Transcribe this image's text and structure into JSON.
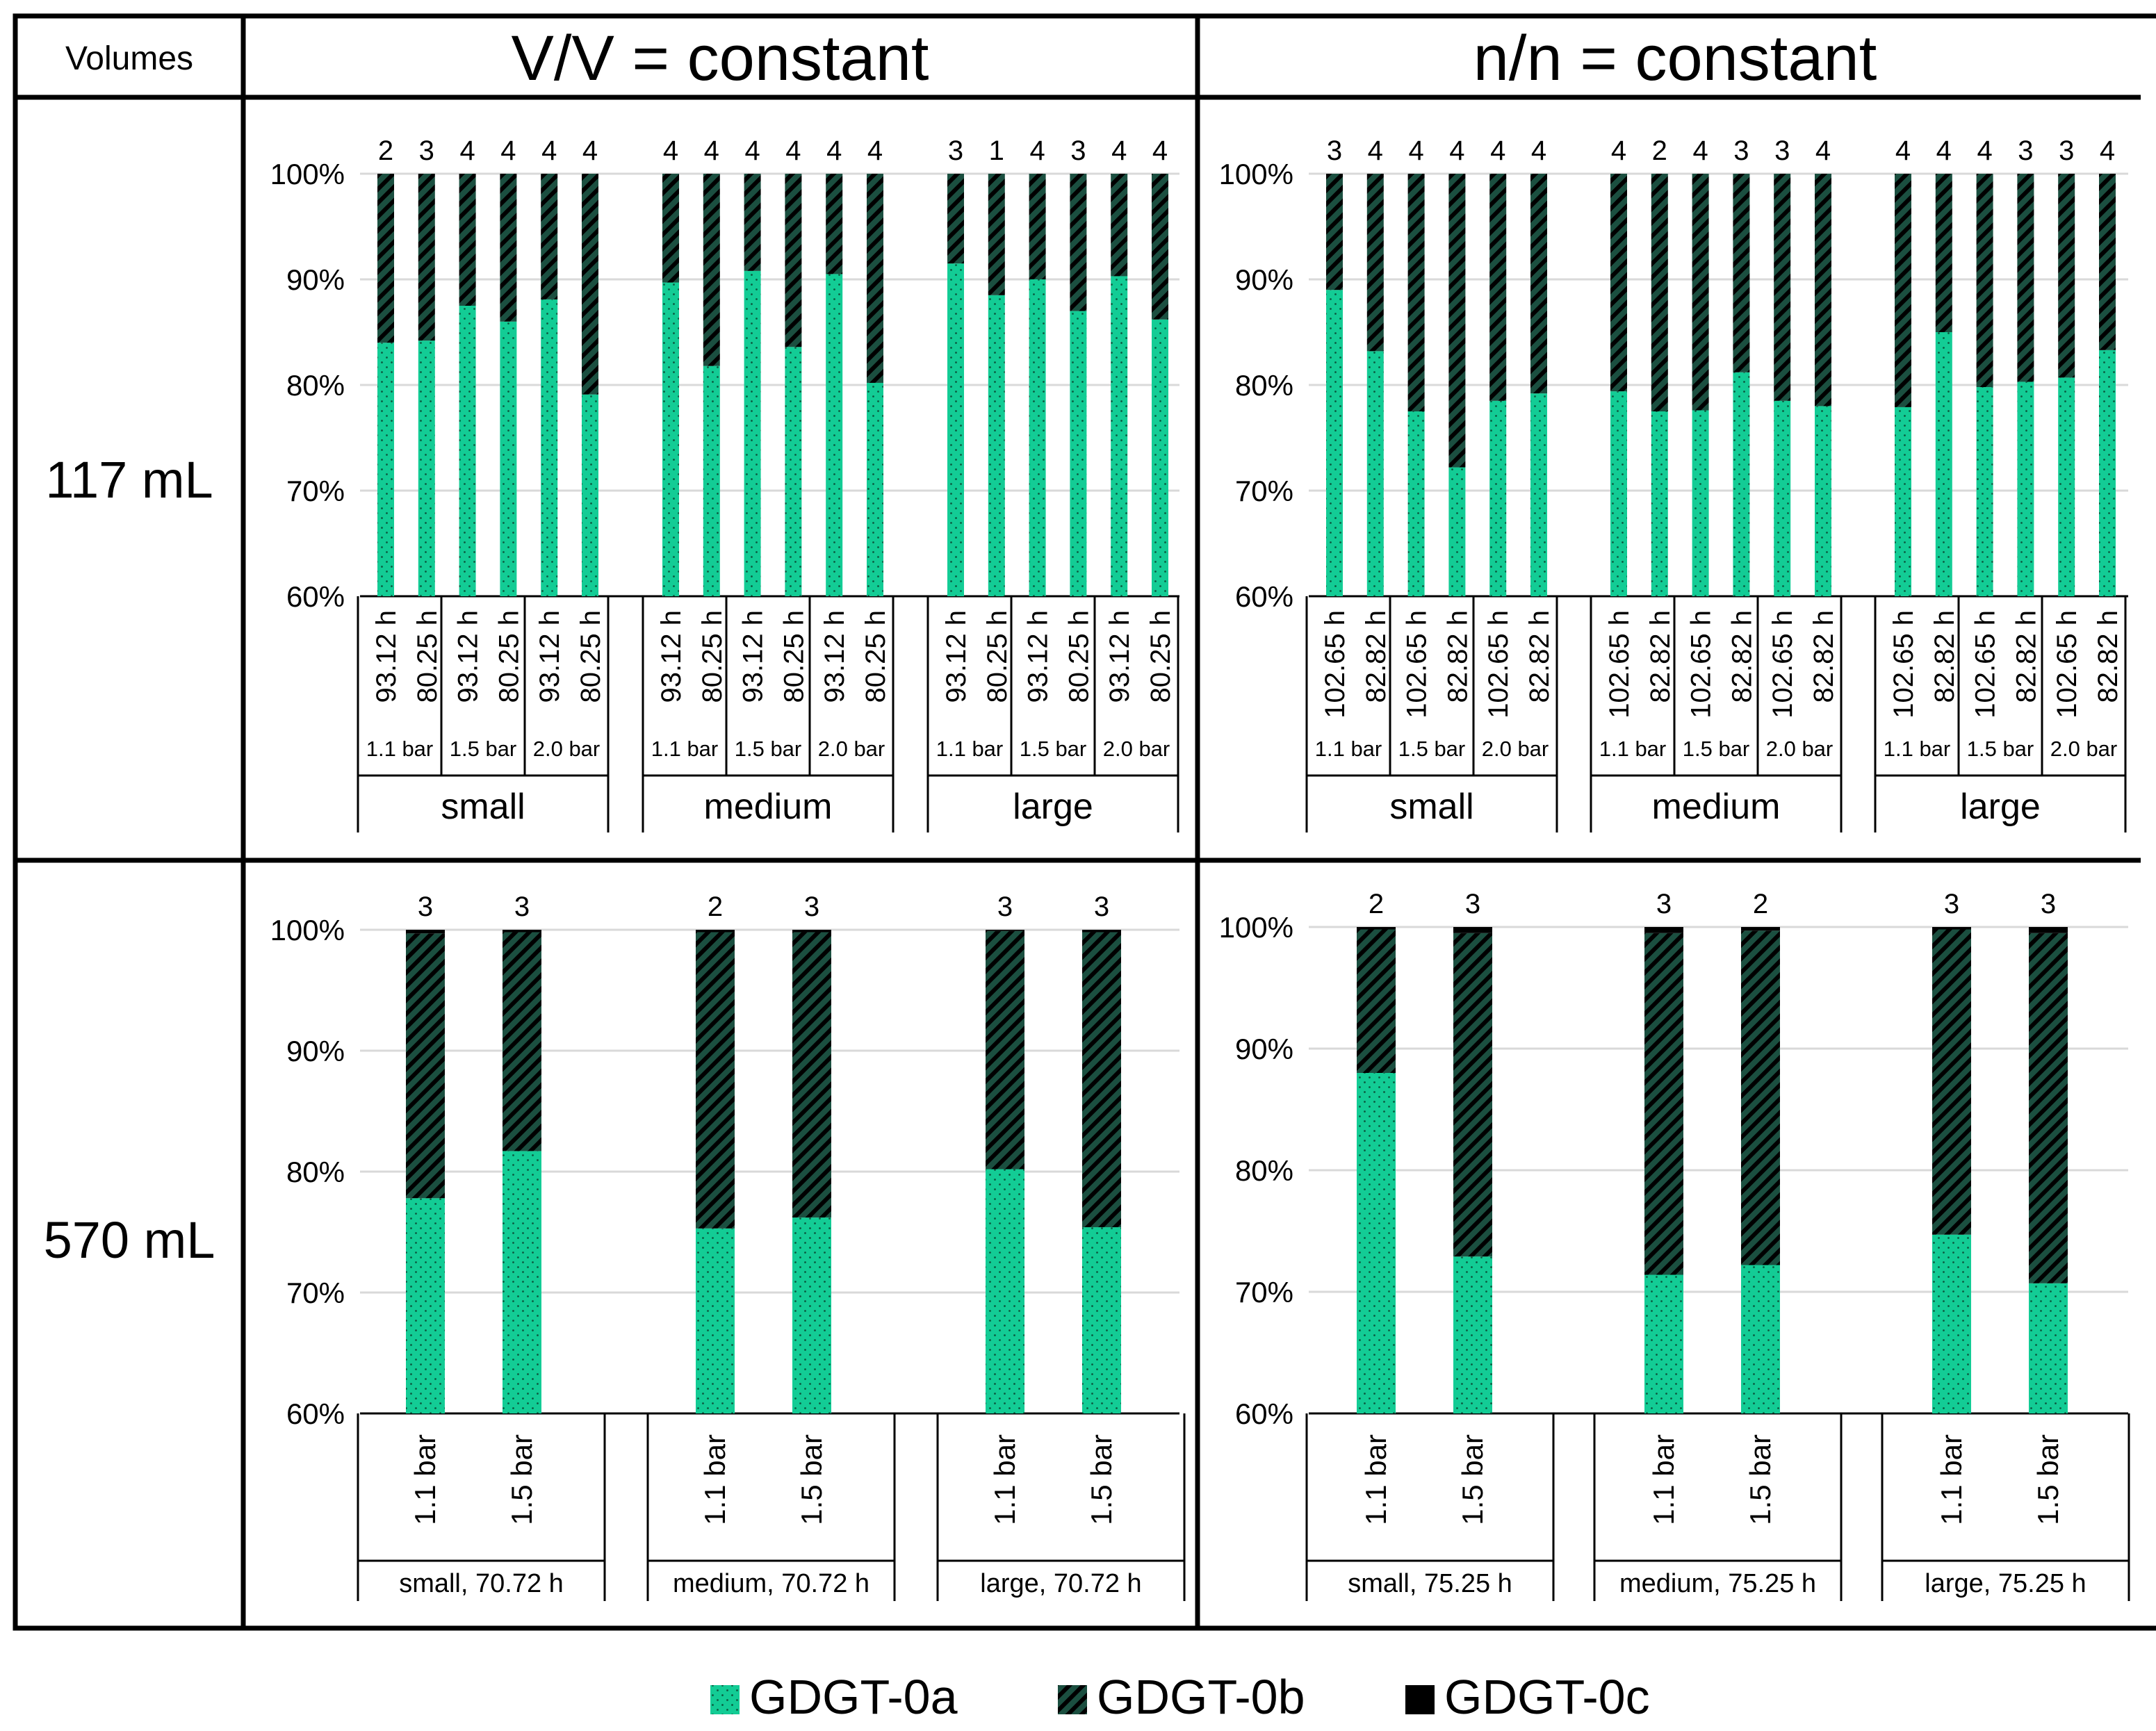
{
  "table": {
    "corner_label": "Volumes",
    "column_headers": [
      "V/V = constant",
      "n/n = constant"
    ],
    "row_headers": [
      "117 mL",
      "570 mL"
    ]
  },
  "legend": [
    {
      "name": "GDGT-0a",
      "pattern": "dots",
      "color": "#13cc95"
    },
    {
      "name": "GDGT-0b",
      "pattern": "hatch",
      "color": "#1b4f40"
    },
    {
      "name": "GDGT-0c",
      "pattern": "solid",
      "color": "#000000"
    }
  ],
  "colors": {
    "gdgt0a": "#13cc95",
    "gdgt0b_bg": "#1b4f40",
    "gdgt0b_stripe": "#000000",
    "gdgt0c": "#000000",
    "grid": "#d9d9d9",
    "border": "#000000"
  },
  "chart_data": [
    {
      "id": "vv-117",
      "type": "stacked-bar",
      "title": "V/V = constant, 117 mL",
      "y_ticks": [
        "60%",
        "70%",
        "80%",
        "90%",
        "100%"
      ],
      "ylim": [
        60,
        100
      ],
      "n_labels": [
        "2",
        "3",
        "4",
        "4",
        "4",
        "4",
        "4",
        "4",
        "4",
        "4",
        "4",
        "4",
        "3",
        "1",
        "4",
        "3",
        "4",
        "4"
      ],
      "gdgt0a": [
        84,
        84.2,
        87.5,
        86,
        88.1,
        79.1,
        89.7,
        81.8,
        90.8,
        83.6,
        90.5,
        80.2,
        91.5,
        88.5,
        90,
        87,
        90.3,
        86.2
      ],
      "gdgt0c": [
        0,
        0,
        0,
        0,
        0,
        0,
        0,
        0,
        0,
        0,
        0,
        0,
        0,
        0,
        0,
        0,
        0,
        0
      ],
      "groups": [
        {
          "name": "small",
          "pressures": [
            {
              "label": "1.1 bar",
              "times": [
                "93.12 h",
                "80.25 h"
              ]
            },
            {
              "label": "1.5 bar",
              "times": [
                "93.12 h",
                "80.25 h"
              ]
            },
            {
              "label": "2.0 bar",
              "times": [
                "93.12 h",
                "80.25 h"
              ]
            }
          ]
        },
        {
          "name": "medium",
          "pressures": [
            {
              "label": "1.1 bar",
              "times": [
                "93.12 h",
                "80.25 h"
              ]
            },
            {
              "label": "1.5 bar",
              "times": [
                "93.12 h",
                "80.25 h"
              ]
            },
            {
              "label": "2.0 bar",
              "times": [
                "93.12 h",
                "80.25 h"
              ]
            }
          ]
        },
        {
          "name": "large",
          "pressures": [
            {
              "label": "1.1 bar",
              "times": [
                "93.12 h",
                "80.25 h"
              ]
            },
            {
              "label": "1.5 bar",
              "times": [
                "93.12 h",
                "80.25 h"
              ]
            },
            {
              "label": "2.0 bar",
              "times": [
                "93.12 h",
                "80.25 h"
              ]
            }
          ]
        }
      ]
    },
    {
      "id": "nn-117",
      "type": "stacked-bar",
      "title": "n/n = constant, 117 mL",
      "y_ticks": [
        "60%",
        "70%",
        "80%",
        "90%",
        "100%"
      ],
      "ylim": [
        60,
        100
      ],
      "n_labels": [
        "3",
        "4",
        "4",
        "4",
        "4",
        "4",
        "4",
        "2",
        "4",
        "3",
        "3",
        "4",
        "4",
        "4",
        "4",
        "3",
        "3",
        "4"
      ],
      "gdgt0a": [
        89,
        83.2,
        77.5,
        72.2,
        78.5,
        79.2,
        79.4,
        77.5,
        77.6,
        81.2,
        78.5,
        78,
        77.9,
        85,
        79.8,
        80.3,
        80.7,
        83.3
      ],
      "gdgt0c": [
        0,
        0,
        0,
        0,
        0,
        0,
        0,
        0,
        0,
        0,
        0,
        0,
        0,
        0,
        0,
        0,
        0,
        0
      ],
      "groups": [
        {
          "name": "small",
          "pressures": [
            {
              "label": "1.1 bar",
              "times": [
                "102.65 h",
                "82.82 h"
              ]
            },
            {
              "label": "1.5 bar",
              "times": [
                "102.65 h",
                "82.82 h"
              ]
            },
            {
              "label": "2.0 bar",
              "times": [
                "102.65 h",
                "82.82 h"
              ]
            }
          ]
        },
        {
          "name": "medium",
          "pressures": [
            {
              "label": "1.1 bar",
              "times": [
                "102.65 h",
                "82.82 h"
              ]
            },
            {
              "label": "1.5 bar",
              "times": [
                "102.65 h",
                "82.82 h"
              ]
            },
            {
              "label": "2.0 bar",
              "times": [
                "102.65 h",
                "82.82 h"
              ]
            }
          ]
        },
        {
          "name": "large",
          "pressures": [
            {
              "label": "1.1 bar",
              "times": [
                "102.65 h",
                "82.82 h"
              ]
            },
            {
              "label": "1.5 bar",
              "times": [
                "102.65 h",
                "82.82 h"
              ]
            },
            {
              "label": "2.0 bar",
              "times": [
                "102.65 h",
                "82.82 h"
              ]
            }
          ]
        }
      ]
    },
    {
      "id": "vv-570",
      "type": "stacked-bar",
      "title": "V/V = constant, 570 mL",
      "y_ticks": [
        "60%",
        "70%",
        "80%",
        "90%",
        "100%"
      ],
      "ylim": [
        60,
        100
      ],
      "n_labels": [
        "3",
        "3",
        "2",
        "3",
        "3",
        "3"
      ],
      "gdgt0a": [
        77.8,
        81.7,
        75.3,
        76.2,
        80.2,
        75.4
      ],
      "gdgt0c": [
        0.3,
        0.2,
        0.2,
        0.2,
        0.1,
        0.2
      ],
      "groups": [
        {
          "name": "small, 70.72 h",
          "bars": [
            "1.1 bar",
            "1.5 bar"
          ]
        },
        {
          "name": "medium, 70.72 h",
          "bars": [
            "1.1 bar",
            "1.5 bar"
          ]
        },
        {
          "name": "large, 70.72 h",
          "bars": [
            "1.1 bar",
            "1.5 bar"
          ]
        }
      ]
    },
    {
      "id": "nn-570",
      "type": "stacked-bar",
      "title": "n/n = constant, 570 mL",
      "y_ticks": [
        "60%",
        "70%",
        "80%",
        "90%",
        "100%"
      ],
      "ylim": [
        60,
        100
      ],
      "n_labels": [
        "2",
        "3",
        "3",
        "2",
        "3",
        "3"
      ],
      "gdgt0a": [
        88,
        72.9,
        71.4,
        72.2,
        74.7,
        70.7
      ],
      "gdgt0c": [
        0.2,
        0.5,
        0.5,
        0.3,
        0.2,
        0.5
      ],
      "groups": [
        {
          "name": "small, 75.25 h",
          "bars": [
            "1.1 bar",
            "1.5 bar"
          ]
        },
        {
          "name": "medium, 75.25 h",
          "bars": [
            "1.1 bar",
            "1.5 bar"
          ]
        },
        {
          "name": "large, 75.25 h",
          "bars": [
            "1.1 bar",
            "1.5 bar"
          ]
        }
      ]
    }
  ]
}
